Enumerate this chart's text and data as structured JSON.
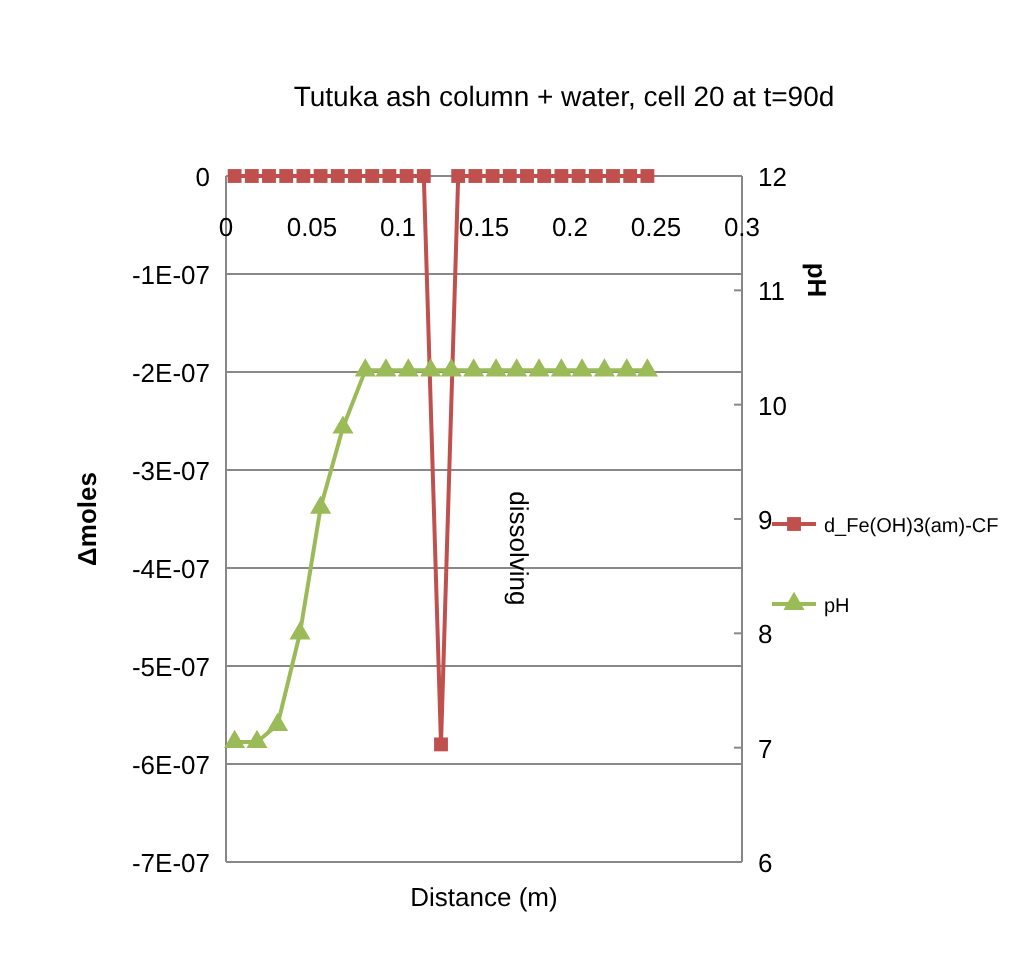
{
  "chart_data": {
    "type": "line",
    "title": "Tutuka ash column + water, cell 20 at t=90d",
    "xlabel": "Distance (m)",
    "ylabel": "Δmoles",
    "y2label": "pH",
    "xlim": [
      0,
      0.3
    ],
    "xticks": [
      0,
      0.05,
      0.1,
      0.15,
      0.2,
      0.25,
      0.3
    ],
    "ylim": [
      -7e-07,
      0
    ],
    "yticks": [
      {
        "value": -7e-07,
        "label": "-7E-07"
      },
      {
        "value": -6e-07,
        "label": "-6E-07"
      },
      {
        "value": -5e-07,
        "label": "-5E-07"
      },
      {
        "value": -4e-07,
        "label": "-4E-07"
      },
      {
        "value": -3e-07,
        "label": "-3E-07"
      },
      {
        "value": -2e-07,
        "label": "-2E-07"
      },
      {
        "value": -1e-07,
        "label": "-1E-07"
      },
      0
    ],
    "y2lim": [
      6,
      12
    ],
    "y2ticks": [
      6,
      7,
      8,
      9,
      10,
      11,
      12
    ],
    "grid": "y",
    "legend": "right",
    "annotations": [
      "dissolving"
    ],
    "series": [
      {
        "name": "d_Fe(OH)3(am)-CF",
        "color": "#c0504d",
        "marker": "square",
        "x": [
          0.005,
          0.015,
          0.025,
          0.035,
          0.045,
          0.055,
          0.065,
          0.075,
          0.085,
          0.095,
          0.105,
          0.115,
          0.125,
          0.135,
          0.145,
          0.155,
          0.165,
          0.175,
          0.185,
          0.195,
          0.205,
          0.215,
          0.225,
          0.235,
          0.245
        ],
        "values": [
          0,
          0,
          0,
          0,
          0,
          0,
          0,
          0,
          0,
          0,
          0,
          0,
          -5.8e-07,
          0,
          0,
          0,
          0,
          0,
          0,
          0,
          0,
          0,
          0,
          0,
          0
        ]
      },
      {
        "name": "pH",
        "color": "#9bbb59",
        "marker": "triangle",
        "axis": "y2",
        "x": [
          0.005,
          0.018,
          0.03,
          0.043,
          0.055,
          0.068,
          0.081,
          0.093,
          0.106,
          0.119,
          0.131,
          0.144,
          0.157,
          0.169,
          0.182,
          0.195,
          0.207,
          0.22,
          0.233,
          0.245
        ],
        "values": [
          7.05,
          7.05,
          7.2,
          8.0,
          9.1,
          9.8,
          10.3,
          10.3,
          10.3,
          10.3,
          10.3,
          10.3,
          10.3,
          10.3,
          10.3,
          10.3,
          10.3,
          10.3,
          10.3,
          10.3
        ]
      }
    ]
  }
}
